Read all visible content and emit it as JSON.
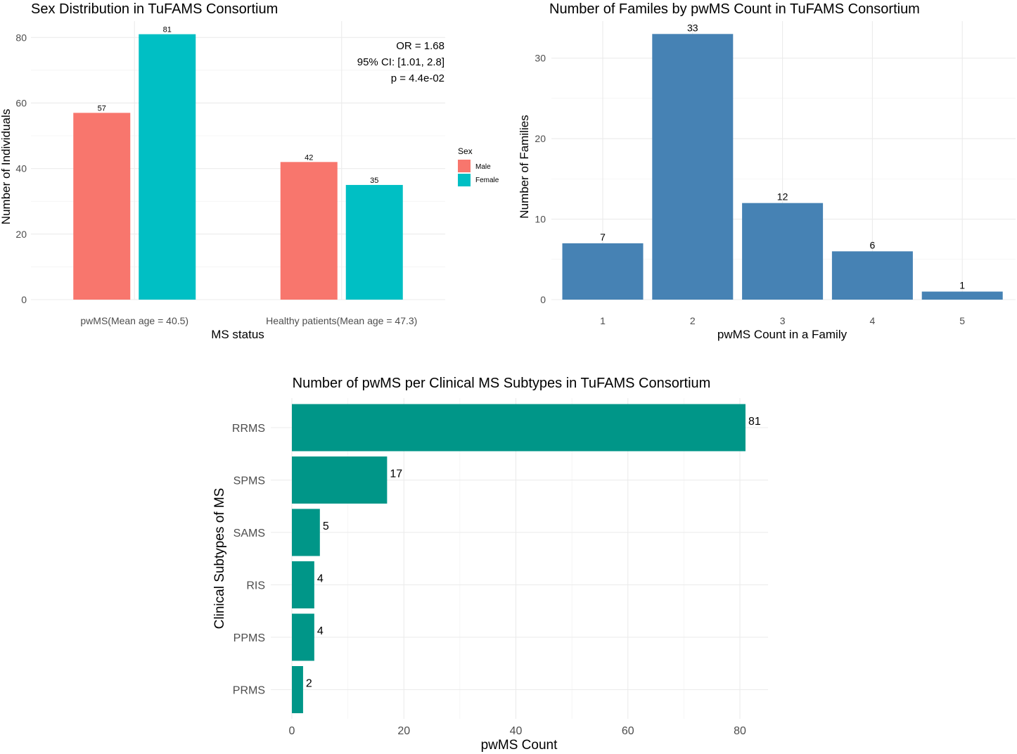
{
  "chart_data": [
    {
      "id": "sex",
      "type": "bar",
      "title": "Sex Distribution in TuFAMS Consortium",
      "xlabel": "MS status",
      "ylabel": "Number of Individuals",
      "categories": [
        "pwMS(Mean age = 40.5)",
        "Healthy patients(Mean age = 47.3)"
      ],
      "series": [
        {
          "name": "Male",
          "color": "#F8766D",
          "values": [
            57,
            42
          ]
        },
        {
          "name": "Female",
          "color": "#00BFC4",
          "values": [
            81,
            35
          ]
        }
      ],
      "ylim": [
        0,
        85
      ],
      "yticks": [
        0,
        20,
        40,
        60,
        80
      ],
      "legend": {
        "title": "Sex",
        "position": "right"
      },
      "annotations": [
        "OR = 1.68",
        "95% CI: [1.01, 2.8]",
        "p = 4.4e-02"
      ]
    },
    {
      "id": "families",
      "type": "bar",
      "title": "Number of Familes by pwMS Count in TuFAMS Consortium",
      "xlabel": "pwMS Count in a Family",
      "ylabel": "Number of Families",
      "categories": [
        "1",
        "2",
        "3",
        "4",
        "5"
      ],
      "values": [
        7,
        33,
        12,
        6,
        1
      ],
      "color": "#4682B4",
      "ylim": [
        0,
        34.6
      ],
      "yticks": [
        0,
        10,
        20,
        30
      ]
    },
    {
      "id": "subtypes",
      "type": "bar",
      "orientation": "horizontal",
      "title": "Number of pwMS per Clinical MS Subtypes in TuFAMS Consortium",
      "xlabel": "pwMS Count",
      "ylabel": "Clinical Subtypes of MS",
      "categories": [
        "RRMS",
        "SPMS",
        "SAMS",
        "RIS",
        "PPMS",
        "PRMS"
      ],
      "values": [
        81,
        17,
        5,
        4,
        4,
        2
      ],
      "color": "#009688",
      "xlim": [
        0,
        85
      ],
      "xticks": [
        0,
        20,
        40,
        60,
        80
      ]
    }
  ]
}
